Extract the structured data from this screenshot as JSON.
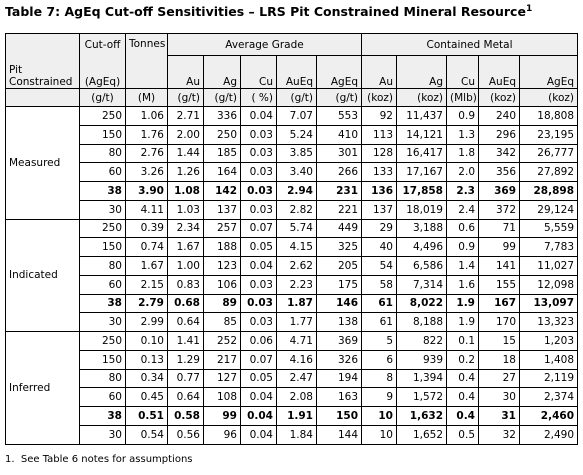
{
  "title": {
    "text": "Table 7: AgEq Cut-off Sensitivities – LRS Pit Constrained Mineral Resource",
    "superscript": "1"
  },
  "table": {
    "header": {
      "pit_constrained": "Pit Constrained",
      "cut_off": "Cut-off",
      "tonnes": "Tonnes",
      "average_grade": "Average Grade",
      "contained_metal": "Contained Metal",
      "cut_off_basis": "(AgEq)",
      "grade_columns": [
        "Au",
        "Ag",
        "Cu",
        "AuEq",
        "AgEq"
      ],
      "metal_columns": [
        "Au",
        "Ag",
        "Cu",
        "AuEq",
        "AgEq"
      ],
      "units": [
        "(g/t)",
        "(M)",
        "(g/t)",
        "(g/t)",
        "( %)",
        "(g/t)",
        "(g/t)",
        "(koz)",
        "(koz)",
        "(Mlb)",
        "(koz)",
        "(koz)"
      ]
    },
    "groups": [
      {
        "name": "Measured",
        "rows": [
          [
            "250",
            "1.06",
            "2.71",
            "336",
            "0.04",
            "7.07",
            "553",
            "92",
            "11,437",
            "0.9",
            "240",
            "18,808"
          ],
          [
            "150",
            "1.76",
            "2.00",
            "250",
            "0.03",
            "5.24",
            "410",
            "113",
            "14,121",
            "1.3",
            "296",
            "23,195"
          ],
          [
            "80",
            "2.76",
            "1.44",
            "185",
            "0.03",
            "3.85",
            "301",
            "128",
            "16,417",
            "1.8",
            "342",
            "26,777"
          ],
          [
            "60",
            "3.26",
            "1.26",
            "164",
            "0.03",
            "3.40",
            "266",
            "133",
            "17,167",
            "2.0",
            "356",
            "27,892"
          ],
          [
            "38",
            "3.90",
            "1.08",
            "142",
            "0.03",
            "2.94",
            "231",
            "136",
            "17,858",
            "2.3",
            "369",
            "28,898"
          ],
          [
            "30",
            "4.11",
            "1.03",
            "137",
            "0.03",
            "2.82",
            "221",
            "137",
            "18,019",
            "2.4",
            "372",
            "29,124"
          ]
        ]
      },
      {
        "name": "Indicated",
        "rows": [
          [
            "250",
            "0.39",
            "2.34",
            "257",
            "0.07",
            "5.74",
            "449",
            "29",
            "3,188",
            "0.6",
            "71",
            "5,559"
          ],
          [
            "150",
            "0.74",
            "1.67",
            "188",
            "0.05",
            "4.15",
            "325",
            "40",
            "4,496",
            "0.9",
            "99",
            "7,783"
          ],
          [
            "80",
            "1.67",
            "1.00",
            "123",
            "0.04",
            "2.62",
            "205",
            "54",
            "6,586",
            "1.4",
            "141",
            "11,027"
          ],
          [
            "60",
            "2.15",
            "0.83",
            "106",
            "0.03",
            "2.23",
            "175",
            "58",
            "7,314",
            "1.6",
            "155",
            "12,098"
          ],
          [
            "38",
            "2.79",
            "0.68",
            "89",
            "0.03",
            "1.87",
            "146",
            "61",
            "8,022",
            "1.9",
            "167",
            "13,097"
          ],
          [
            "30",
            "2.99",
            "0.64",
            "85",
            "0.03",
            "1.77",
            "138",
            "61",
            "8,188",
            "1.9",
            "170",
            "13,323"
          ]
        ]
      },
      {
        "name": "Inferred",
        "rows": [
          [
            "250",
            "0.10",
            "1.41",
            "252",
            "0.06",
            "4.71",
            "369",
            "5",
            "822",
            "0.1",
            "15",
            "1,203"
          ],
          [
            "150",
            "0.13",
            "1.29",
            "217",
            "0.07",
            "4.16",
            "326",
            "6",
            "939",
            "0.2",
            "18",
            "1,408"
          ],
          [
            "80",
            "0.34",
            "0.77",
            "127",
            "0.05",
            "2.47",
            "194",
            "8",
            "1,394",
            "0.4",
            "27",
            "2,119"
          ],
          [
            "60",
            "0.45",
            "0.64",
            "108",
            "0.04",
            "2.08",
            "163",
            "9",
            "1,572",
            "0.4",
            "30",
            "2,374"
          ],
          [
            "38",
            "0.51",
            "0.58",
            "99",
            "0.04",
            "1.91",
            "150",
            "10",
            "1,632",
            "0.4",
            "31",
            "2,460"
          ],
          [
            "30",
            "0.54",
            "0.56",
            "96",
            "0.04",
            "1.84",
            "144",
            "10",
            "1,652",
            "0.5",
            "32",
            "2,490"
          ]
        ]
      }
    ]
  },
  "footnote": "1.  See Table 6 notes for assumptions"
}
